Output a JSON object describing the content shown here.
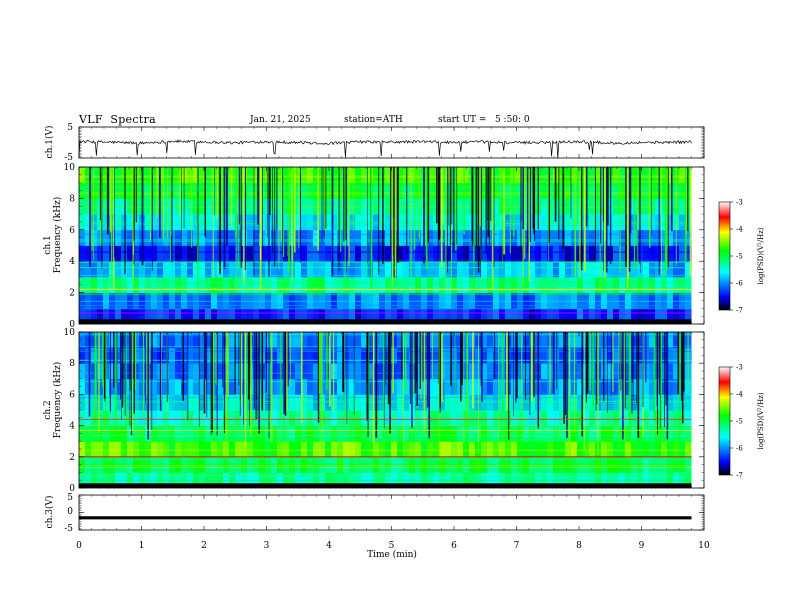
{
  "header": {
    "title": "VLF  Spectra",
    "date": "Jan. 21, 2025",
    "station": "station=ATH",
    "start_ut": "start UT =   5 :50: 0"
  },
  "chart_data": [
    {
      "type": "line",
      "id": "ch1_time_series",
      "ylabel": "ch.1(V)",
      "ylim": [
        -5,
        5
      ],
      "yticks": [
        "5",
        "-5"
      ],
      "xlim": [
        0,
        10
      ],
      "x": [
        0,
        0.5,
        1,
        1.5,
        2,
        2.5,
        3,
        3.5,
        4,
        4.5,
        5,
        5.5,
        6,
        6.5,
        7,
        7.5,
        8,
        8.5,
        9,
        9.5,
        9.8
      ],
      "y": [
        0.3,
        0.1,
        -0.2,
        0.4,
        0.2,
        -0.1,
        0.3,
        0.0,
        -0.3,
        0.2,
        0.1,
        0.3,
        0.0,
        0.2,
        -0.1,
        0.1,
        0.3,
        -0.2,
        0.0,
        0.1,
        0.2
      ],
      "color": "#000000"
    },
    {
      "type": "heatmap",
      "id": "ch1_spectrogram",
      "ylabel": "Frequency (kHz)",
      "channel_label": "ch.1",
      "ylim": [
        0,
        10
      ],
      "yticks": [
        "0",
        "2",
        "4",
        "6",
        "8",
        "10"
      ],
      "xlim": [
        0,
        10
      ],
      "x": [
        0,
        1,
        2,
        3,
        4,
        5,
        6,
        7,
        8,
        9,
        9.8
      ],
      "freq_bands_khz": [
        0,
        1,
        2,
        3,
        4,
        5,
        6,
        7,
        8,
        9,
        10
      ],
      "log_psd": [
        [
          -6.3,
          -6.4,
          -6.3,
          -6.4,
          -6.3,
          -6.4,
          -6.3,
          -6.4,
          -6.3,
          -6.4,
          -6.3
        ],
        [
          -6.0,
          -6.1,
          -6.0,
          -6.0,
          -6.1,
          -6.0,
          -6.0,
          -6.1,
          -6.0,
          -6.0,
          -6.1
        ],
        [
          -5.2,
          -5.3,
          -5.2,
          -5.3,
          -5.2,
          -5.3,
          -5.2,
          -5.3,
          -5.2,
          -5.3,
          -5.2
        ],
        [
          -5.8,
          -5.9,
          -5.8,
          -5.8,
          -5.9,
          -5.8,
          -5.8,
          -5.9,
          -5.8,
          -5.8,
          -5.9
        ],
        [
          -6.4,
          -6.5,
          -6.4,
          -6.5,
          -6.3,
          -6.4,
          -6.5,
          -6.4,
          -6.5,
          -6.3,
          -6.4
        ],
        [
          -5.9,
          -6.0,
          -5.9,
          -6.0,
          -5.9,
          -6.0,
          -5.9,
          -6.0,
          -5.9,
          -6.0,
          -5.9
        ],
        [
          -5.6,
          -5.7,
          -5.6,
          -5.7,
          -5.6,
          -5.7,
          -5.6,
          -5.7,
          -5.6,
          -5.7,
          -5.6
        ],
        [
          -5.2,
          -5.3,
          -5.2,
          -5.3,
          -5.2,
          -5.3,
          -5.2,
          -5.3,
          -5.2,
          -5.3,
          -5.2
        ],
        [
          -4.9,
          -5.0,
          -4.9,
          -5.0,
          -4.9,
          -5.0,
          -4.9,
          -5.0,
          -4.9,
          -5.0,
          -4.9
        ],
        [
          -4.7,
          -4.8,
          -4.7,
          -4.8,
          -4.7,
          -4.8,
          -4.7,
          -4.8,
          -4.7,
          -4.8,
          -4.7
        ]
      ]
    },
    {
      "type": "heatmap",
      "id": "ch2_spectrogram",
      "ylabel": "Frequency (kHz)",
      "channel_label": "ch.2",
      "ylim": [
        0,
        10
      ],
      "yticks": [
        "0",
        "2",
        "4",
        "6",
        "8",
        "10"
      ],
      "xlim": [
        0,
        10
      ],
      "x": [
        0,
        1,
        2,
        3,
        4,
        5,
        6,
        7,
        8,
        9,
        9.8
      ],
      "freq_bands_khz": [
        0,
        1,
        2,
        3,
        4,
        5,
        6,
        7,
        8,
        9,
        10
      ],
      "log_psd": [
        [
          -5.3,
          -5.4,
          -5.3,
          -5.4,
          -5.3,
          -5.4,
          -5.3,
          -5.4,
          -5.3,
          -5.4,
          -5.3
        ],
        [
          -5.0,
          -5.1,
          -5.0,
          -5.1,
          -5.0,
          -5.1,
          -5.0,
          -5.1,
          -5.0,
          -5.1,
          -5.0
        ],
        [
          -4.6,
          -4.7,
          -4.6,
          -4.7,
          -4.6,
          -4.7,
          -4.6,
          -4.7,
          -4.6,
          -4.7,
          -4.6
        ],
        [
          -5.1,
          -5.2,
          -5.1,
          -5.2,
          -5.1,
          -5.2,
          -5.1,
          -5.2,
          -5.1,
          -5.2,
          -5.1
        ],
        [
          -5.3,
          -5.4,
          -5.3,
          -5.4,
          -5.3,
          -5.4,
          -5.3,
          -5.4,
          -5.3,
          -5.4,
          -5.3
        ],
        [
          -5.7,
          -5.8,
          -5.7,
          -5.8,
          -5.7,
          -5.8,
          -5.7,
          -5.8,
          -5.7,
          -5.8,
          -5.7
        ],
        [
          -5.9,
          -6.0,
          -5.9,
          -6.0,
          -5.9,
          -6.0,
          -5.9,
          -6.0,
          -5.9,
          -6.0,
          -5.9
        ],
        [
          -6.0,
          -6.1,
          -6.0,
          -6.1,
          -6.0,
          -6.1,
          -6.0,
          -6.1,
          -6.0,
          -6.1,
          -6.0
        ],
        [
          -6.1,
          -6.2,
          -6.1,
          -6.2,
          -6.1,
          -6.2,
          -6.1,
          -6.2,
          -6.1,
          -6.2,
          -6.1
        ],
        [
          -6.0,
          -6.1,
          -6.0,
          -6.1,
          -6.0,
          -6.1,
          -6.0,
          -6.1,
          -6.0,
          -6.1,
          -6.0
        ]
      ]
    },
    {
      "type": "line",
      "id": "ch3_time_series",
      "ylabel": "ch.3(V)",
      "ylim": [
        -5,
        5
      ],
      "yticks": [
        "5",
        "0",
        "-5"
      ],
      "xlim": [
        0,
        10
      ],
      "x": [
        0,
        9.8
      ],
      "y": [
        -1.5,
        -1.5
      ],
      "color": "#000000"
    }
  ],
  "time_axis": {
    "xlabel": "Time  (min)",
    "ticks": [
      "0",
      "1",
      "2",
      "3",
      "4",
      "5",
      "6",
      "7",
      "8",
      "9",
      "10"
    ]
  },
  "colorbar": {
    "label": "log(PSD)(V²/Hz)",
    "ticks": [
      "-3",
      "-4",
      "-5",
      "-6",
      "-7"
    ],
    "range": [
      -7,
      -3
    ],
    "colors": [
      "#000000",
      "#0000ff",
      "#00ffff",
      "#00ff00",
      "#ffff00",
      "#ff0000",
      "#ffffff"
    ]
  }
}
